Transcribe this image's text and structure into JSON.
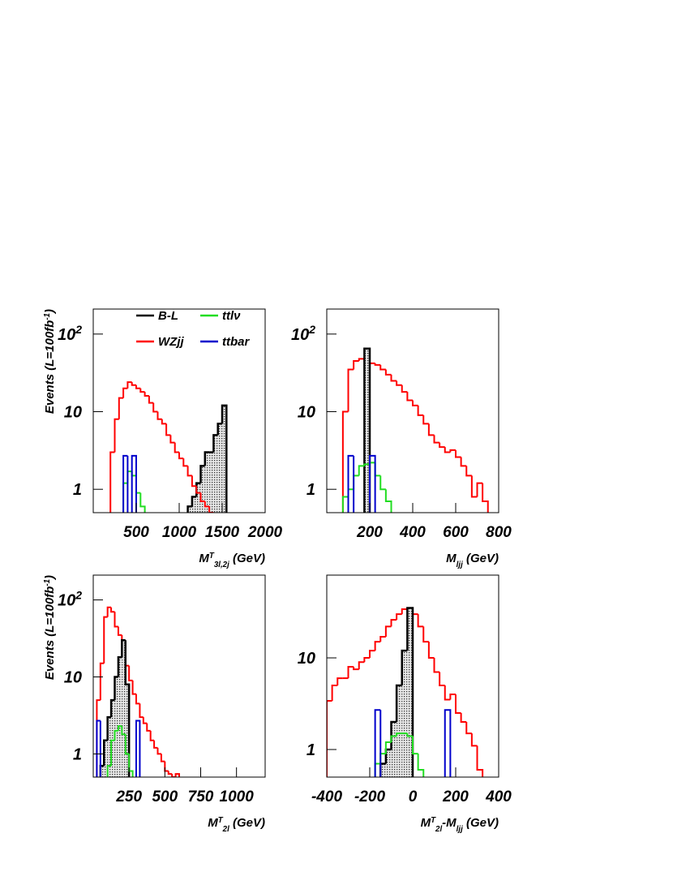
{
  "chart_data": [
    {
      "type": "histogram",
      "log_y": true,
      "xlim": [
        0,
        2000
      ],
      "ylim": [
        0.5,
        210
      ],
      "xticks": [
        500,
        1000,
        1500,
        2000
      ],
      "yticks": [
        1,
        10,
        {
          "value": 100,
          "label": "10",
          "sup": "2"
        }
      ],
      "xlabel": [
        {
          "text": "M"
        },
        {
          "text": "T",
          "sup": true
        },
        {
          "text": "3l,2j",
          "sub": true
        },
        {
          "text": " (GeV)"
        }
      ],
      "ylabel": [
        {
          "text": "Events (L=100fb"
        },
        {
          "text": "-1",
          "sup": true
        },
        {
          "text": ")"
        }
      ],
      "legend": "top",
      "series": [
        {
          "name": "B-L",
          "color": "#000000",
          "style": "filled",
          "bins": [
            1100,
            1150,
            1200,
            1250,
            1300,
            1350,
            1400,
            1450,
            1500,
            1550
          ],
          "counts": [
            0.6,
            0.8,
            1.2,
            2,
            3,
            3,
            5,
            7,
            12
          ]
        },
        {
          "name": "WZjj",
          "color": "#ff0000",
          "style": "step",
          "bins": [
            200,
            250,
            300,
            350,
            400,
            450,
            500,
            550,
            600,
            650,
            700,
            750,
            800,
            850,
            900,
            950,
            1000,
            1050,
            1100,
            1150,
            1200,
            1250,
            1300,
            1350,
            1400,
            1450
          ],
          "counts": [
            3,
            8,
            15,
            20,
            24,
            22,
            20,
            18,
            16,
            13,
            10,
            8,
            7,
            5,
            4,
            3,
            2.5,
            2,
            1.5,
            1.1,
            0.9,
            0.7,
            0.6,
            0.5,
            0.45
          ]
        },
        {
          "name": "ttlν",
          "color": "#22dd22",
          "style": "step",
          "bins": [
            350,
            400,
            450,
            500,
            550,
            600
          ],
          "counts": [
            1.2,
            1.7,
            1.5,
            0.9,
            0.6
          ]
        },
        {
          "name": "ttbar",
          "color": "#0000cc",
          "style": "step",
          "bins": [
            350,
            400,
            450,
            500
          ],
          "counts": [
            2.7,
            0,
            2.7
          ]
        }
      ]
    },
    {
      "type": "histogram",
      "log_y": true,
      "xlim": [
        0,
        800
      ],
      "ylim": [
        0.5,
        210
      ],
      "xticks": [
        200,
        400,
        600,
        800
      ],
      "yticks": [
        1,
        10,
        {
          "value": 100,
          "label": "10",
          "sup": "2"
        }
      ],
      "xlabel": [
        {
          "text": "M"
        },
        {
          "text": "ljj",
          "sub": true
        },
        {
          "text": " (GeV)"
        }
      ],
      "series": [
        {
          "color": "#ff0000",
          "style": "step",
          "bins": [
            50,
            75,
            100,
            125,
            150,
            175,
            200,
            225,
            250,
            275,
            300,
            325,
            350,
            375,
            400,
            425,
            450,
            475,
            500,
            525,
            550,
            575,
            600,
            625,
            650,
            675,
            700,
            725,
            750
          ],
          "counts": [
            0.4,
            10,
            35,
            45,
            48,
            45,
            42,
            40,
            35,
            30,
            25,
            22,
            18,
            14,
            12,
            9,
            7,
            5,
            4,
            3.5,
            3,
            3.2,
            2.6,
            2,
            1.5,
            0.8,
            1.2,
            0.7
          ]
        },
        {
          "color": "#000000",
          "style": "filled",
          "bins": [
            175,
            200
          ],
          "counts": [
            65
          ]
        },
        {
          "color": "#22dd22",
          "style": "step",
          "bins": [
            75,
            100,
            125,
            150,
            175,
            200,
            225,
            250,
            275,
            300
          ],
          "counts": [
            0.8,
            1,
            1.5,
            2,
            2.1,
            2.2,
            1.5,
            1,
            0.7
          ]
        },
        {
          "color": "#0000cc",
          "style": "step",
          "bins": [
            100,
            125,
            200,
            225
          ],
          "counts": [
            2.7,
            0,
            2.7
          ]
        }
      ]
    },
    {
      "type": "histogram",
      "log_y": true,
      "xlim": [
        0,
        1200
      ],
      "ylim": [
        0.5,
        210
      ],
      "xticks": [
        250,
        500,
        750,
        1000
      ],
      "yticks": [
        1,
        10,
        {
          "value": 100,
          "label": "10",
          "sup": "2"
        }
      ],
      "xlabel": [
        {
          "text": "M"
        },
        {
          "text": "T",
          "sup": true
        },
        {
          "text": "2l",
          "sub": true
        },
        {
          "text": " (GeV)"
        }
      ],
      "ylabel": [
        {
          "text": "Events (L=100fb"
        },
        {
          "text": "-1",
          "sup": true
        },
        {
          "text": ")"
        }
      ],
      "series": [
        {
          "color": "#ff0000",
          "style": "step",
          "bins": [
            25,
            50,
            75,
            100,
            125,
            150,
            175,
            200,
            225,
            250,
            275,
            300,
            325,
            350,
            375,
            400,
            425,
            450,
            475,
            500,
            525,
            550,
            575,
            600
          ],
          "counts": [
            5,
            15,
            60,
            80,
            70,
            45,
            35,
            22,
            14,
            9,
            6,
            4.5,
            3,
            2.5,
            2,
            1.5,
            1.2,
            1,
            0.8,
            0.6,
            0.55,
            0.5,
            0.55
          ]
        },
        {
          "color": "#000000",
          "style": "filled",
          "bins": [
            50,
            75,
            100,
            125,
            150,
            175,
            200,
            225,
            250
          ],
          "counts": [
            0.7,
            1.5,
            3,
            5,
            10,
            18,
            30,
            8
          ]
        },
        {
          "color": "#22dd22",
          "style": "step",
          "bins": [
            100,
            125,
            150,
            175,
            200,
            225,
            250,
            275
          ],
          "counts": [
            0.7,
            1.5,
            2,
            2.3,
            1.8,
            1,
            0.6
          ]
        },
        {
          "color": "#0000cc",
          "style": "step",
          "bins": [
            25,
            50,
            300,
            325
          ],
          "counts": [
            2.7,
            0,
            2.7
          ]
        }
      ]
    },
    {
      "type": "histogram",
      "log_y": true,
      "xlim": [
        -400,
        400
      ],
      "ylim": [
        0.5,
        80
      ],
      "xticks": [
        -400,
        -200,
        0,
        200,
        400
      ],
      "yticks": [
        1,
        10
      ],
      "xlabel": [
        {
          "text": "M"
        },
        {
          "text": "T",
          "sup": true
        },
        {
          "text": "2l",
          "sub": true
        },
        {
          "text": "-M"
        },
        {
          "text": "ljj",
          "sub": true
        },
        {
          "text": " (GeV)"
        }
      ],
      "series": [
        {
          "color": "#ff0000",
          "style": "step",
          "bins": [
            -400,
            -375,
            -350,
            -325,
            -300,
            -275,
            -250,
            -225,
            -200,
            -175,
            -150,
            -125,
            -100,
            -75,
            -50,
            -25,
            0,
            25,
            50,
            75,
            100,
            125,
            150,
            175,
            200,
            225,
            250,
            275,
            300,
            325
          ],
          "counts": [
            3.4,
            5,
            6,
            6,
            8,
            7.5,
            9,
            10,
            12,
            15,
            17,
            22,
            26,
            30,
            34,
            35,
            30,
            22,
            15,
            10,
            7,
            5,
            3.5,
            4,
            2.5,
            2,
            1.5,
            1.1,
            0.6
          ]
        },
        {
          "color": "#000000",
          "style": "filled",
          "bins": [
            -150,
            -125,
            -100,
            -75,
            -50,
            -25,
            0
          ],
          "counts": [
            0.7,
            1,
            2,
            5,
            12,
            35
          ]
        },
        {
          "color": "#22dd22",
          "style": "step",
          "bins": [
            -175,
            -150,
            -125,
            -100,
            -75,
            -50,
            -25,
            0,
            25,
            50
          ],
          "counts": [
            0.7,
            0.9,
            1.2,
            1.4,
            1.5,
            1.5,
            1.4,
            0.9,
            0.6
          ]
        },
        {
          "color": "#0000cc",
          "style": "step",
          "bins": [
            -175,
            -150,
            150,
            175
          ],
          "counts": [
            2.7,
            0,
            2.7
          ]
        }
      ]
    }
  ]
}
